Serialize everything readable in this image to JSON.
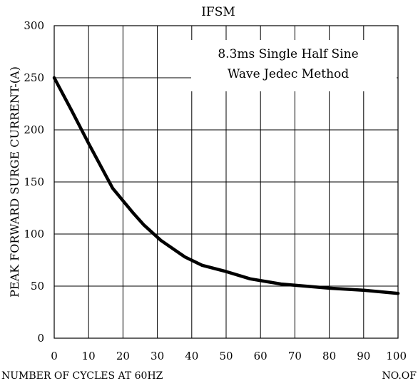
{
  "chart_data": {
    "type": "line",
    "title": "IFSM",
    "annotation_lines": [
      "8.3ms Single Half Sine",
      "Wave Jedec Method"
    ],
    "ylabel": "PEAK FORWARD SURGE CURRENT-(A)",
    "xlabel_left": "NUMBER OF CYCLES AT 60HZ",
    "xlabel_right": "NO.OF",
    "xlim": [
      0,
      100
    ],
    "ylim": [
      0,
      300
    ],
    "x_ticks": [
      0,
      10,
      20,
      30,
      40,
      50,
      60,
      70,
      80,
      90,
      100
    ],
    "y_ticks": [
      0,
      50,
      100,
      150,
      200,
      250,
      300
    ],
    "grid": true,
    "series": [
      {
        "x": [
          0,
          5,
          10,
          17,
          23,
          26,
          31,
          38,
          43,
          50,
          57,
          66,
          80,
          90,
          100
        ],
        "y": [
          250,
          219,
          187,
          144,
          120,
          109,
          94,
          78,
          70,
          64,
          57,
          52,
          48,
          46,
          43
        ]
      }
    ]
  },
  "colors": {
    "line": "#000000",
    "grid": "#000000",
    "background": "#ffffff"
  }
}
